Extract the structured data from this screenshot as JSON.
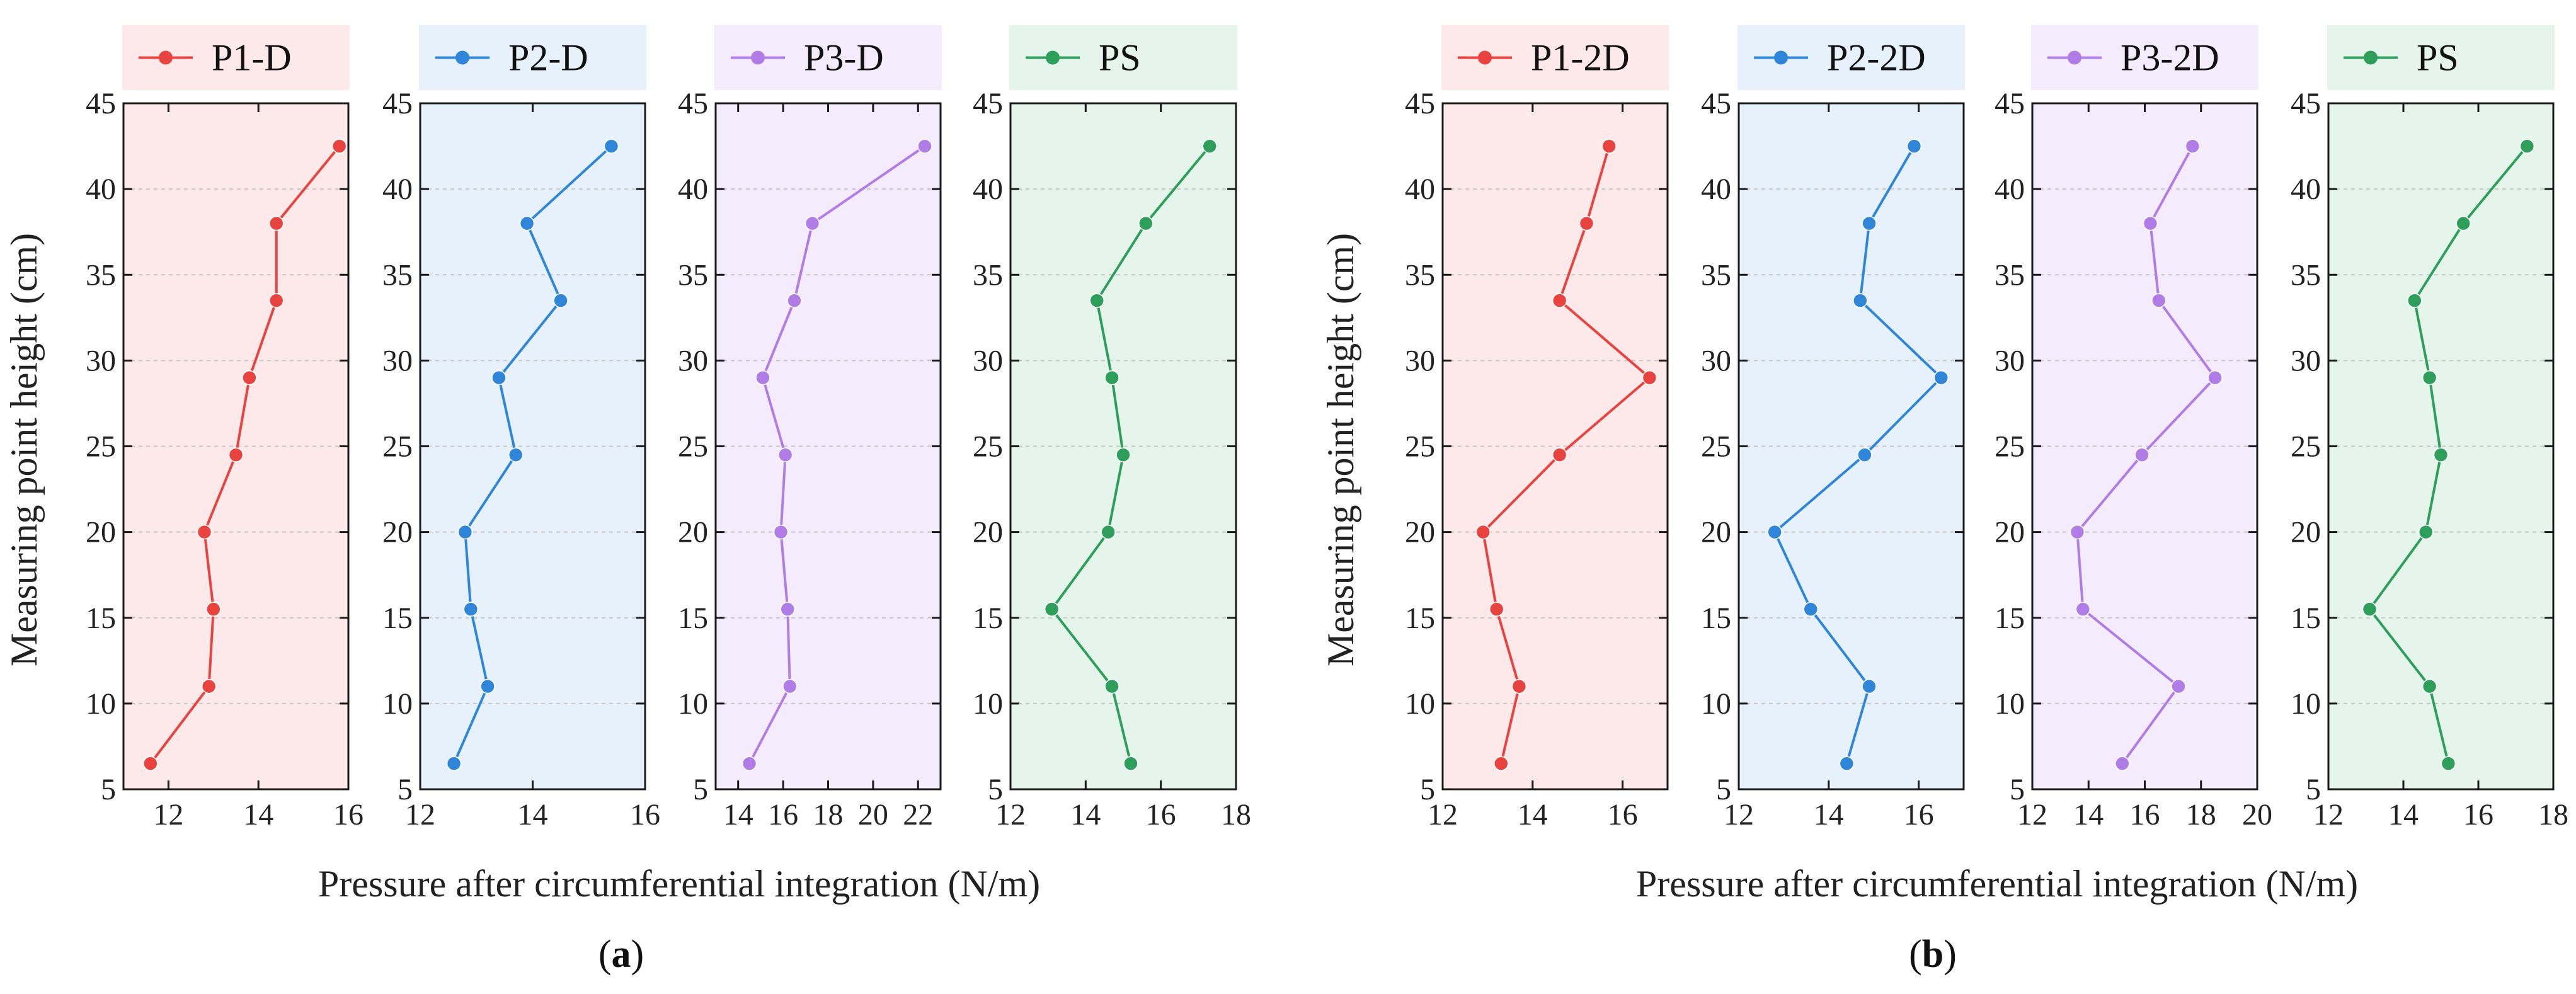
{
  "figure": {
    "captions": [
      "(a)",
      "(b)"
    ],
    "caption_letters": [
      "a",
      "b"
    ]
  },
  "chart_data": [
    {
      "type": "line",
      "group": "a",
      "panel_index": 0,
      "title": "",
      "legend": "P1-D",
      "xlabel": "Pressure after circumferential integration (N/m)",
      "ylabel": "Measuring point height (cm)",
      "xlim": [
        11,
        16
      ],
      "xticks": [
        12,
        14,
        16
      ],
      "ylim": [
        5,
        45
      ],
      "yticks": [
        5,
        10,
        15,
        20,
        25,
        30,
        35,
        40,
        45
      ],
      "color": "#e8433f",
      "bg_color": "#fde9e9",
      "grid": true,
      "series": [
        {
          "name": "P1-D",
          "x": [
            11.6,
            12.9,
            13.0,
            12.8,
            13.5,
            13.8,
            14.4,
            14.4,
            15.8
          ],
          "y": [
            6.5,
            11,
            15.5,
            20,
            24.5,
            29,
            33.5,
            38,
            42.5
          ]
        }
      ]
    },
    {
      "type": "line",
      "group": "a",
      "panel_index": 1,
      "title": "",
      "legend": "P2-D",
      "xlim": [
        12,
        16
      ],
      "xticks": [
        12,
        14,
        16
      ],
      "ylim": [
        5,
        45
      ],
      "yticks": [
        5,
        10,
        15,
        20,
        25,
        30,
        35,
        40,
        45
      ],
      "color": "#2f86d9",
      "bg_color": "#e7f1fc",
      "grid": true,
      "series": [
        {
          "name": "P2-D",
          "x": [
            12.6,
            13.2,
            12.9,
            12.8,
            13.7,
            13.4,
            14.5,
            13.9,
            15.4
          ],
          "y": [
            6.5,
            11,
            15.5,
            20,
            24.5,
            29,
            33.5,
            38,
            42.5
          ]
        }
      ]
    },
    {
      "type": "line",
      "group": "a",
      "panel_index": 2,
      "title": "",
      "legend": "P3-D",
      "xlim": [
        13,
        23
      ],
      "xticks": [
        14,
        16,
        18,
        20,
        22
      ],
      "ylim": [
        5,
        45
      ],
      "yticks": [
        5,
        10,
        15,
        20,
        25,
        30,
        35,
        40,
        45
      ],
      "color": "#b07ce6",
      "bg_color": "#f4ecfc",
      "grid": true,
      "series": [
        {
          "name": "P3-D",
          "x": [
            14.5,
            16.3,
            16.2,
            15.9,
            16.1,
            15.1,
            16.5,
            17.3,
            22.3
          ],
          "y": [
            6.5,
            11,
            15.5,
            20,
            24.5,
            29,
            33.5,
            38,
            42.5
          ]
        }
      ]
    },
    {
      "type": "line",
      "group": "a",
      "panel_index": 3,
      "title": "",
      "legend": "PS",
      "xlim": [
        12,
        18
      ],
      "xticks": [
        12,
        14,
        16,
        18
      ],
      "ylim": [
        5,
        45
      ],
      "yticks": [
        5,
        10,
        15,
        20,
        25,
        30,
        35,
        40,
        45
      ],
      "color": "#2e9e5b",
      "bg_color": "#e6f5ec",
      "grid": true,
      "series": [
        {
          "name": "PS",
          "x": [
            15.2,
            14.7,
            13.1,
            14.6,
            15.0,
            14.7,
            14.3,
            15.6,
            17.3
          ],
          "y": [
            6.5,
            11,
            15.5,
            20,
            24.5,
            29,
            33.5,
            38,
            42.5
          ]
        }
      ]
    },
    {
      "type": "line",
      "group": "b",
      "panel_index": 4,
      "title": "",
      "legend": "P1-2D",
      "xlabel": "Pressure after circumferential integration (N/m)",
      "ylabel": "Measuring point height (cm)",
      "xlim": [
        12,
        17
      ],
      "xticks": [
        12,
        14,
        16
      ],
      "ylim": [
        5,
        45
      ],
      "yticks": [
        5,
        10,
        15,
        20,
        25,
        30,
        35,
        40,
        45
      ],
      "color": "#e8433f",
      "bg_color": "#fde9e9",
      "grid": true,
      "series": [
        {
          "name": "P1-2D",
          "x": [
            13.3,
            13.7,
            13.2,
            12.9,
            14.6,
            16.6,
            14.6,
            15.2,
            15.7
          ],
          "y": [
            6.5,
            11,
            15.5,
            20,
            24.5,
            29,
            33.5,
            38,
            42.5
          ]
        }
      ]
    },
    {
      "type": "line",
      "group": "b",
      "panel_index": 5,
      "title": "",
      "legend": "P2-2D",
      "xlim": [
        12,
        17
      ],
      "xticks": [
        12,
        14,
        16
      ],
      "ylim": [
        5,
        45
      ],
      "yticks": [
        5,
        10,
        15,
        20,
        25,
        30,
        35,
        40,
        45
      ],
      "color": "#2f86d9",
      "bg_color": "#e7f1fc",
      "grid": true,
      "series": [
        {
          "name": "P2-2D",
          "x": [
            14.4,
            14.9,
            13.6,
            12.8,
            14.8,
            16.5,
            14.7,
            14.9,
            15.9
          ],
          "y": [
            6.5,
            11,
            15.5,
            20,
            24.5,
            29,
            33.5,
            38,
            42.5
          ]
        }
      ]
    },
    {
      "type": "line",
      "group": "b",
      "panel_index": 6,
      "title": "",
      "legend": "P3-2D",
      "xlim": [
        12,
        20
      ],
      "xticks": [
        12,
        14,
        16,
        18,
        20
      ],
      "ylim": [
        5,
        45
      ],
      "yticks": [
        5,
        10,
        15,
        20,
        25,
        30,
        35,
        40,
        45
      ],
      "color": "#b07ce6",
      "bg_color": "#f4ecfc",
      "grid": true,
      "series": [
        {
          "name": "P3-2D",
          "x": [
            15.2,
            17.2,
            13.8,
            13.6,
            15.9,
            18.5,
            16.5,
            16.2,
            17.7
          ],
          "y": [
            6.5,
            11,
            15.5,
            20,
            24.5,
            29,
            33.5,
            38,
            42.5
          ]
        }
      ]
    },
    {
      "type": "line",
      "group": "b",
      "panel_index": 7,
      "title": "",
      "legend": "PS",
      "xlim": [
        12,
        18
      ],
      "xticks": [
        12,
        14,
        16,
        18
      ],
      "ylim": [
        5,
        45
      ],
      "yticks": [
        5,
        10,
        15,
        20,
        25,
        30,
        35,
        40,
        45
      ],
      "color": "#2e9e5b",
      "bg_color": "#e6f5ec",
      "grid": true,
      "series": [
        {
          "name": "PS",
          "x": [
            15.2,
            14.7,
            13.1,
            14.6,
            15.0,
            14.7,
            14.3,
            15.6,
            17.3
          ],
          "y": [
            6.5,
            11,
            15.5,
            20,
            24.5,
            29,
            33.5,
            38,
            42.5
          ]
        }
      ]
    }
  ]
}
